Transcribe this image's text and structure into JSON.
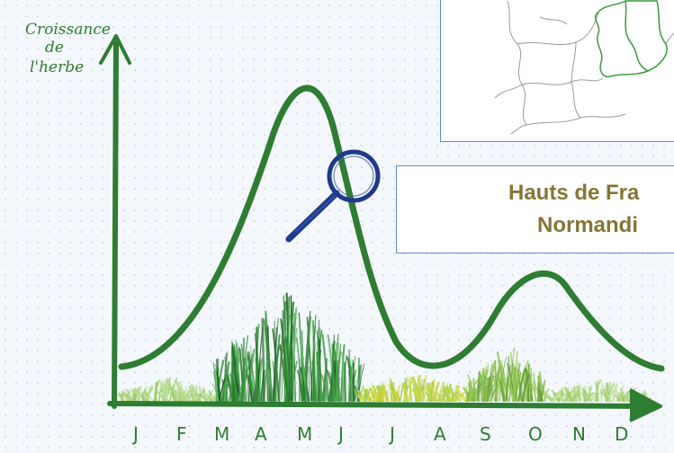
{
  "axis_title": {
    "line1": "Croissance",
    "line2": "de",
    "line3": "l'herbe"
  },
  "months": [
    "J",
    "F",
    "M",
    "A",
    "M",
    "J",
    "J",
    "A",
    "S",
    "O",
    "N",
    "D"
  ],
  "region_box": {
    "line1": "Hauts de Fra",
    "line2": "Normandi"
  },
  "colors": {
    "curve": "#2e7d32",
    "axis": "#2e7d32",
    "magnifier": "#1f3a8a",
    "region_text": "#857536",
    "box_border": "#5b8fd0"
  },
  "icons": [
    "magnifier-icon",
    "grass-illustration",
    "france-map"
  ]
}
